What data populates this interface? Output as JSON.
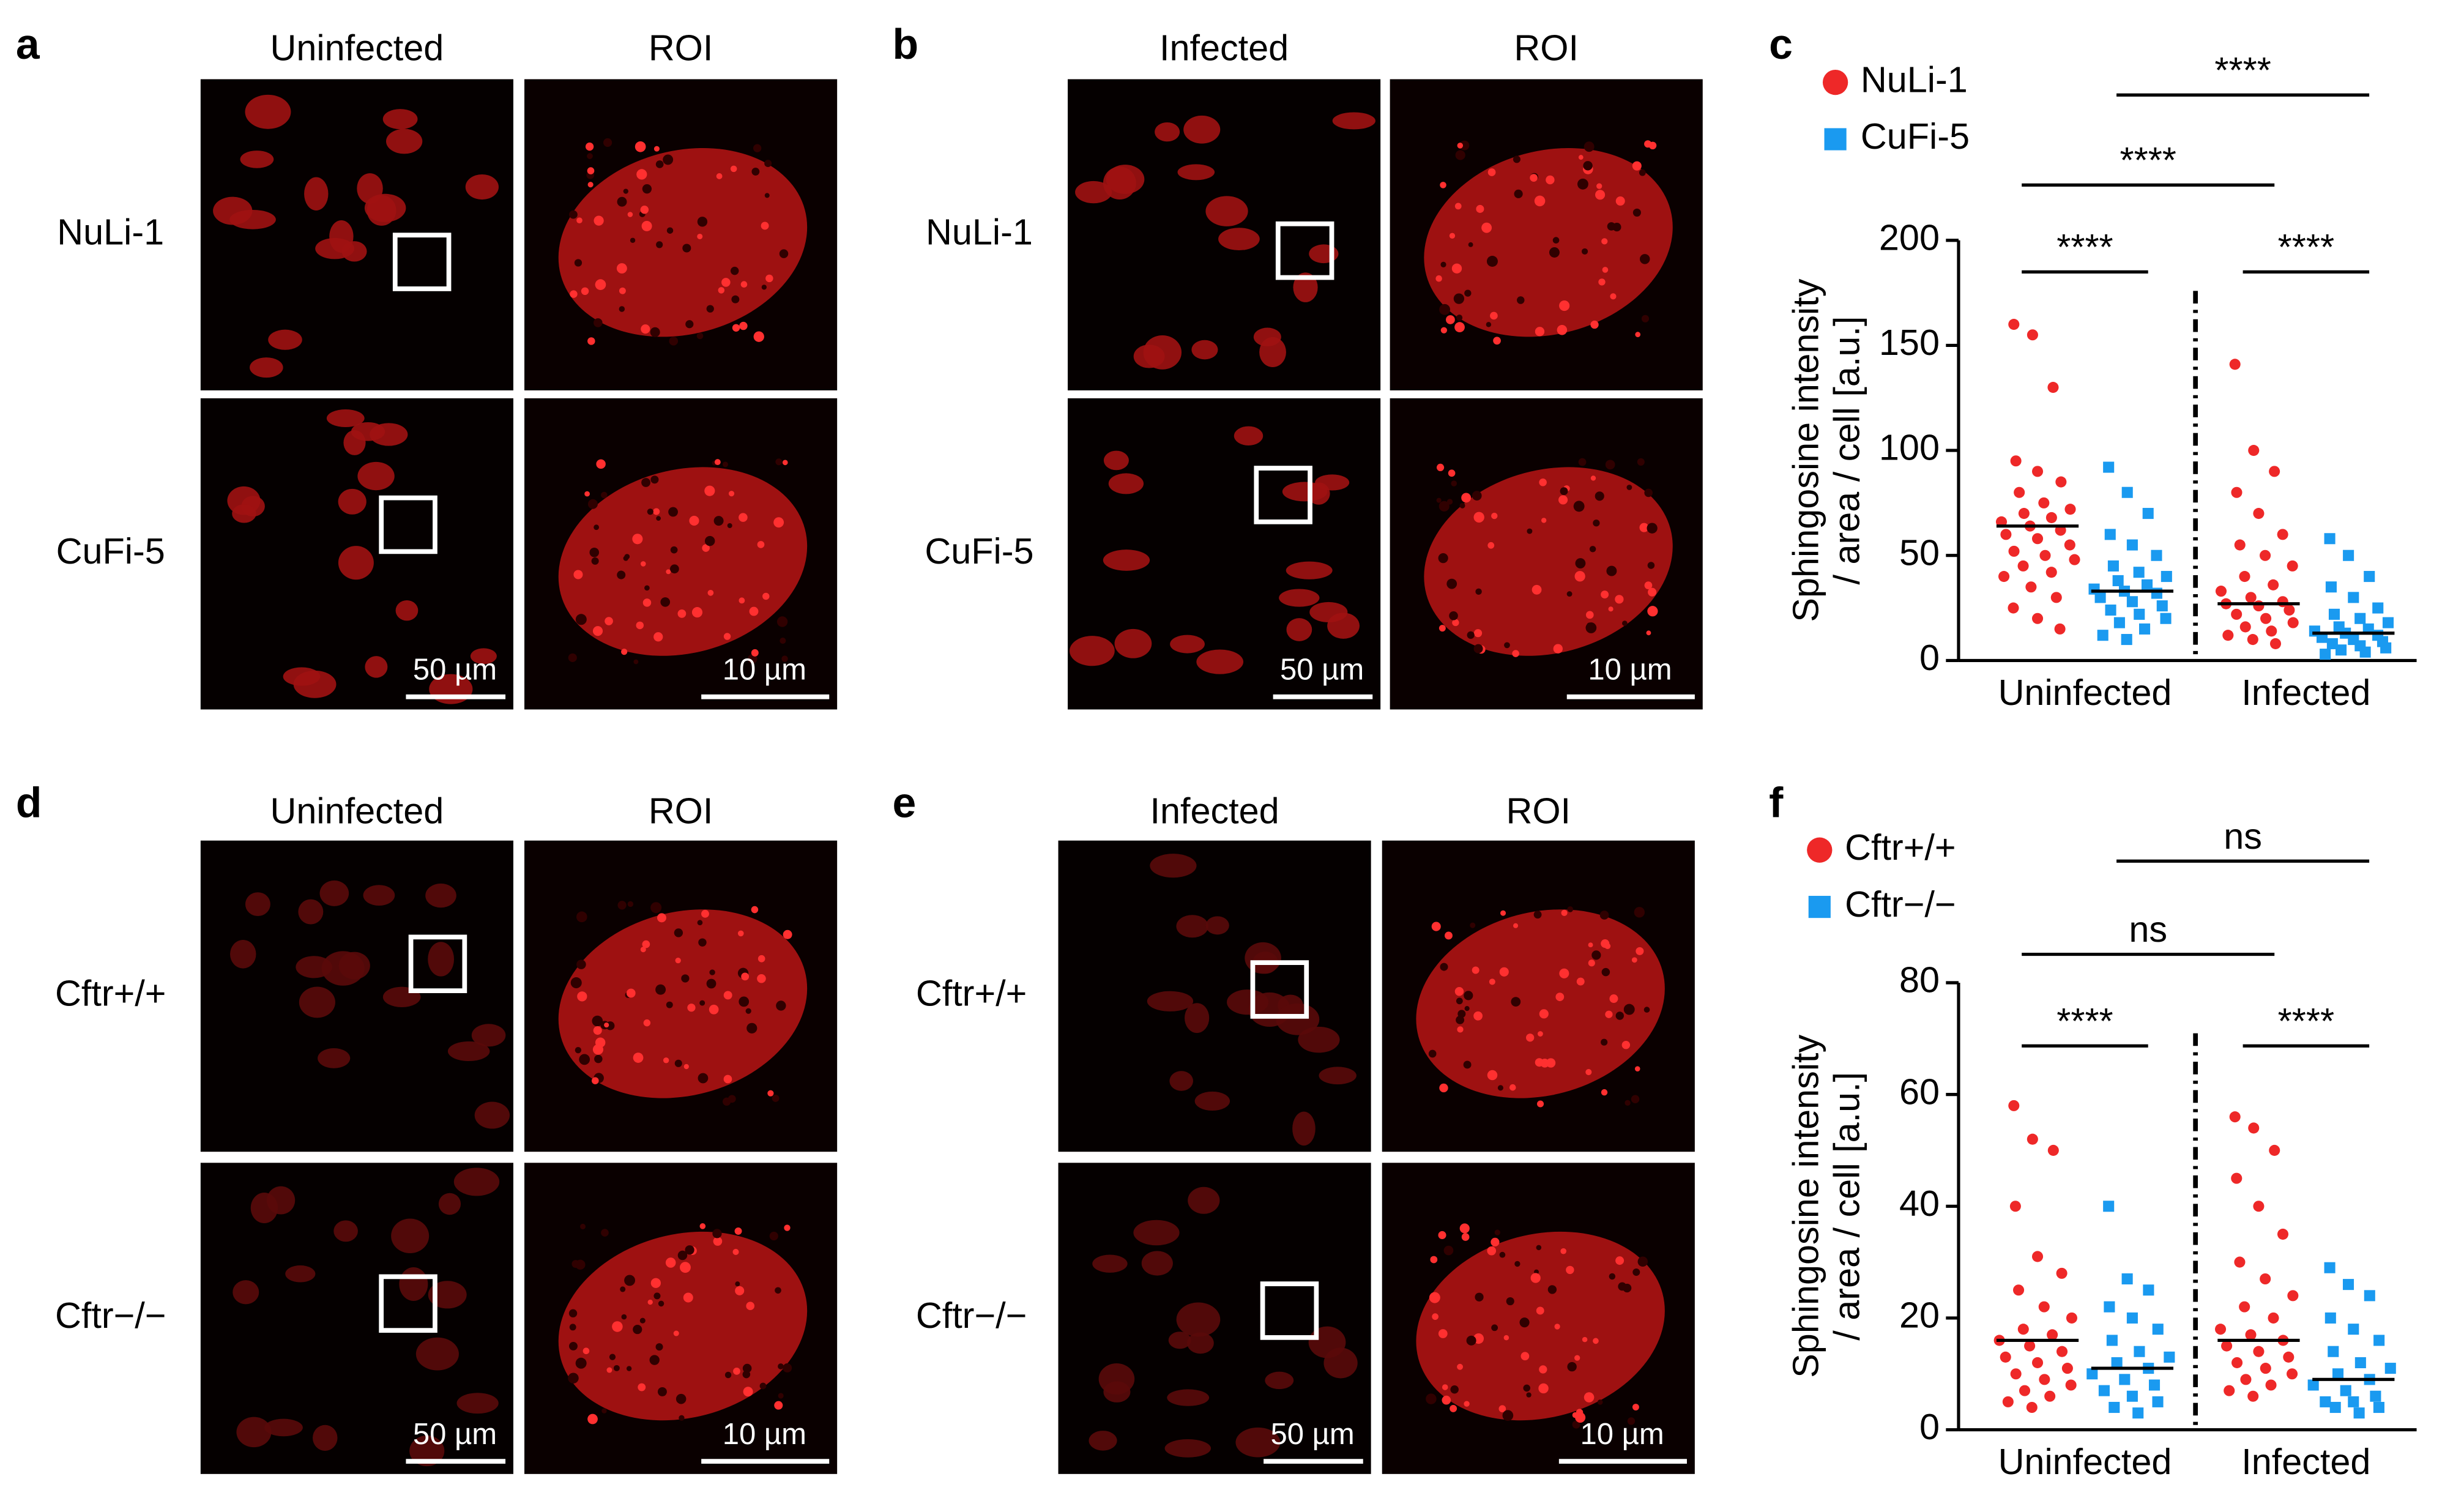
{
  "panels": [
    {
      "letter": "a",
      "columns": [
        "Uninfected",
        "ROI"
      ],
      "rows": [
        "NuLi-1",
        "CuFi-5"
      ],
      "scale_bars": [
        "50 µm",
        "10 µm"
      ]
    },
    {
      "letter": "b",
      "columns": [
        "Infected",
        "ROI"
      ],
      "rows": [
        "NuLi-1",
        "CuFi-5"
      ],
      "scale_bars": [
        "50 µm",
        "10 µm"
      ]
    },
    {
      "letter": "d",
      "columns": [
        "Uninfected",
        "ROI"
      ],
      "rows": [
        "Cftr+/+",
        "Cftr−/−"
      ],
      "scale_bars": [
        "50 µm",
        "10 µm"
      ]
    },
    {
      "letter": "e",
      "columns": [
        "Infected",
        "ROI"
      ],
      "rows": [
        "Cftr+/+",
        "Cftr−/−"
      ],
      "scale_bars": [
        "50 µm",
        "10 µm"
      ]
    }
  ],
  "chart_data": [
    {
      "type": "strip",
      "panel_label": "c",
      "categories": [
        "Uninfected",
        "Infected"
      ],
      "ylabel": [
        "Sphingosine intensity",
        "/ area / cell [a.u.]"
      ],
      "ylim": [
        0,
        200
      ],
      "yticks": [
        0,
        50,
        100,
        150,
        200
      ],
      "series": [
        {
          "name": "NuLi-1",
          "color": "#ee2828",
          "marker": "circle",
          "values": [
            64,
            27
          ],
          "points": [
            [
              160,
              155,
              130,
              95,
              90,
              85,
              80,
              75,
              72,
              70,
              68,
              66,
              64,
              62,
              60,
              58,
              55,
              52,
              50,
              48,
              45,
              42,
              40,
              35,
              30,
              25,
              20,
              15
            ],
            [
              141,
              100,
              90,
              80,
              70,
              60,
              55,
              50,
              45,
              40,
              36,
              33,
              30,
              28,
              27,
              26,
              24,
              22,
              20,
              18,
              16,
              14,
              12,
              10,
              8
            ]
          ]
        },
        {
          "name": "CuFi-5",
          "color": "#1a9af0",
          "marker": "square",
          "values": [
            33,
            13
          ],
          "points": [
            [
              92,
              80,
              70,
              60,
              55,
              50,
              45,
              42,
              40,
              38,
              36,
              34,
              33,
              32,
              30,
              28,
              26,
              24,
              22,
              20,
              18,
              15,
              12,
              10
            ],
            [
              58,
              50,
              40,
              35,
              30,
              25,
              22,
              20,
              18,
              16,
              15,
              14,
              13,
              12,
              11,
              10,
              9,
              8,
              7,
              6,
              5,
              4,
              3
            ]
          ]
        }
      ],
      "annotations": [
        "****",
        "****",
        "****",
        "****"
      ]
    },
    {
      "type": "strip",
      "panel_label": "f",
      "categories": [
        "Uninfected",
        "Infected"
      ],
      "ylabel": [
        "Sphingosine intensity",
        "/ area / cell [a.u.]"
      ],
      "ylim": [
        0,
        80
      ],
      "yticks": [
        0,
        20,
        40,
        60,
        80
      ],
      "series": [
        {
          "name": "Cftr+/+",
          "color": "#ee2828",
          "marker": "circle",
          "values": [
            16,
            16
          ],
          "points": [
            [
              58,
              52,
              50,
              40,
              31,
              28,
              25,
              22,
              20,
              18,
              17,
              16,
              15,
              14,
              13,
              12,
              11,
              10,
              9,
              8,
              7,
              6,
              5,
              4
            ],
            [
              56,
              54,
              50,
              45,
              40,
              35,
              30,
              27,
              24,
              22,
              20,
              18,
              17,
              16,
              15,
              14,
              13,
              12,
              11,
              10,
              9,
              8,
              7,
              6
            ]
          ]
        },
        {
          "name": "Cftr−/−",
          "color": "#1a9af0",
          "marker": "square",
          "values": [
            11,
            9
          ],
          "points": [
            [
              40,
              27,
              25,
              22,
              20,
              18,
              16,
              14,
              13,
              12,
              11,
              10,
              9,
              8,
              7,
              6,
              5,
              4,
              3
            ],
            [
              29,
              26,
              24,
              20,
              18,
              16,
              14,
              12,
              11,
              10,
              9,
              8,
              7,
              6,
              5,
              5,
              4,
              4,
              3
            ]
          ]
        }
      ],
      "annotations": [
        "****",
        "****",
        "ns",
        "ns"
      ]
    }
  ]
}
